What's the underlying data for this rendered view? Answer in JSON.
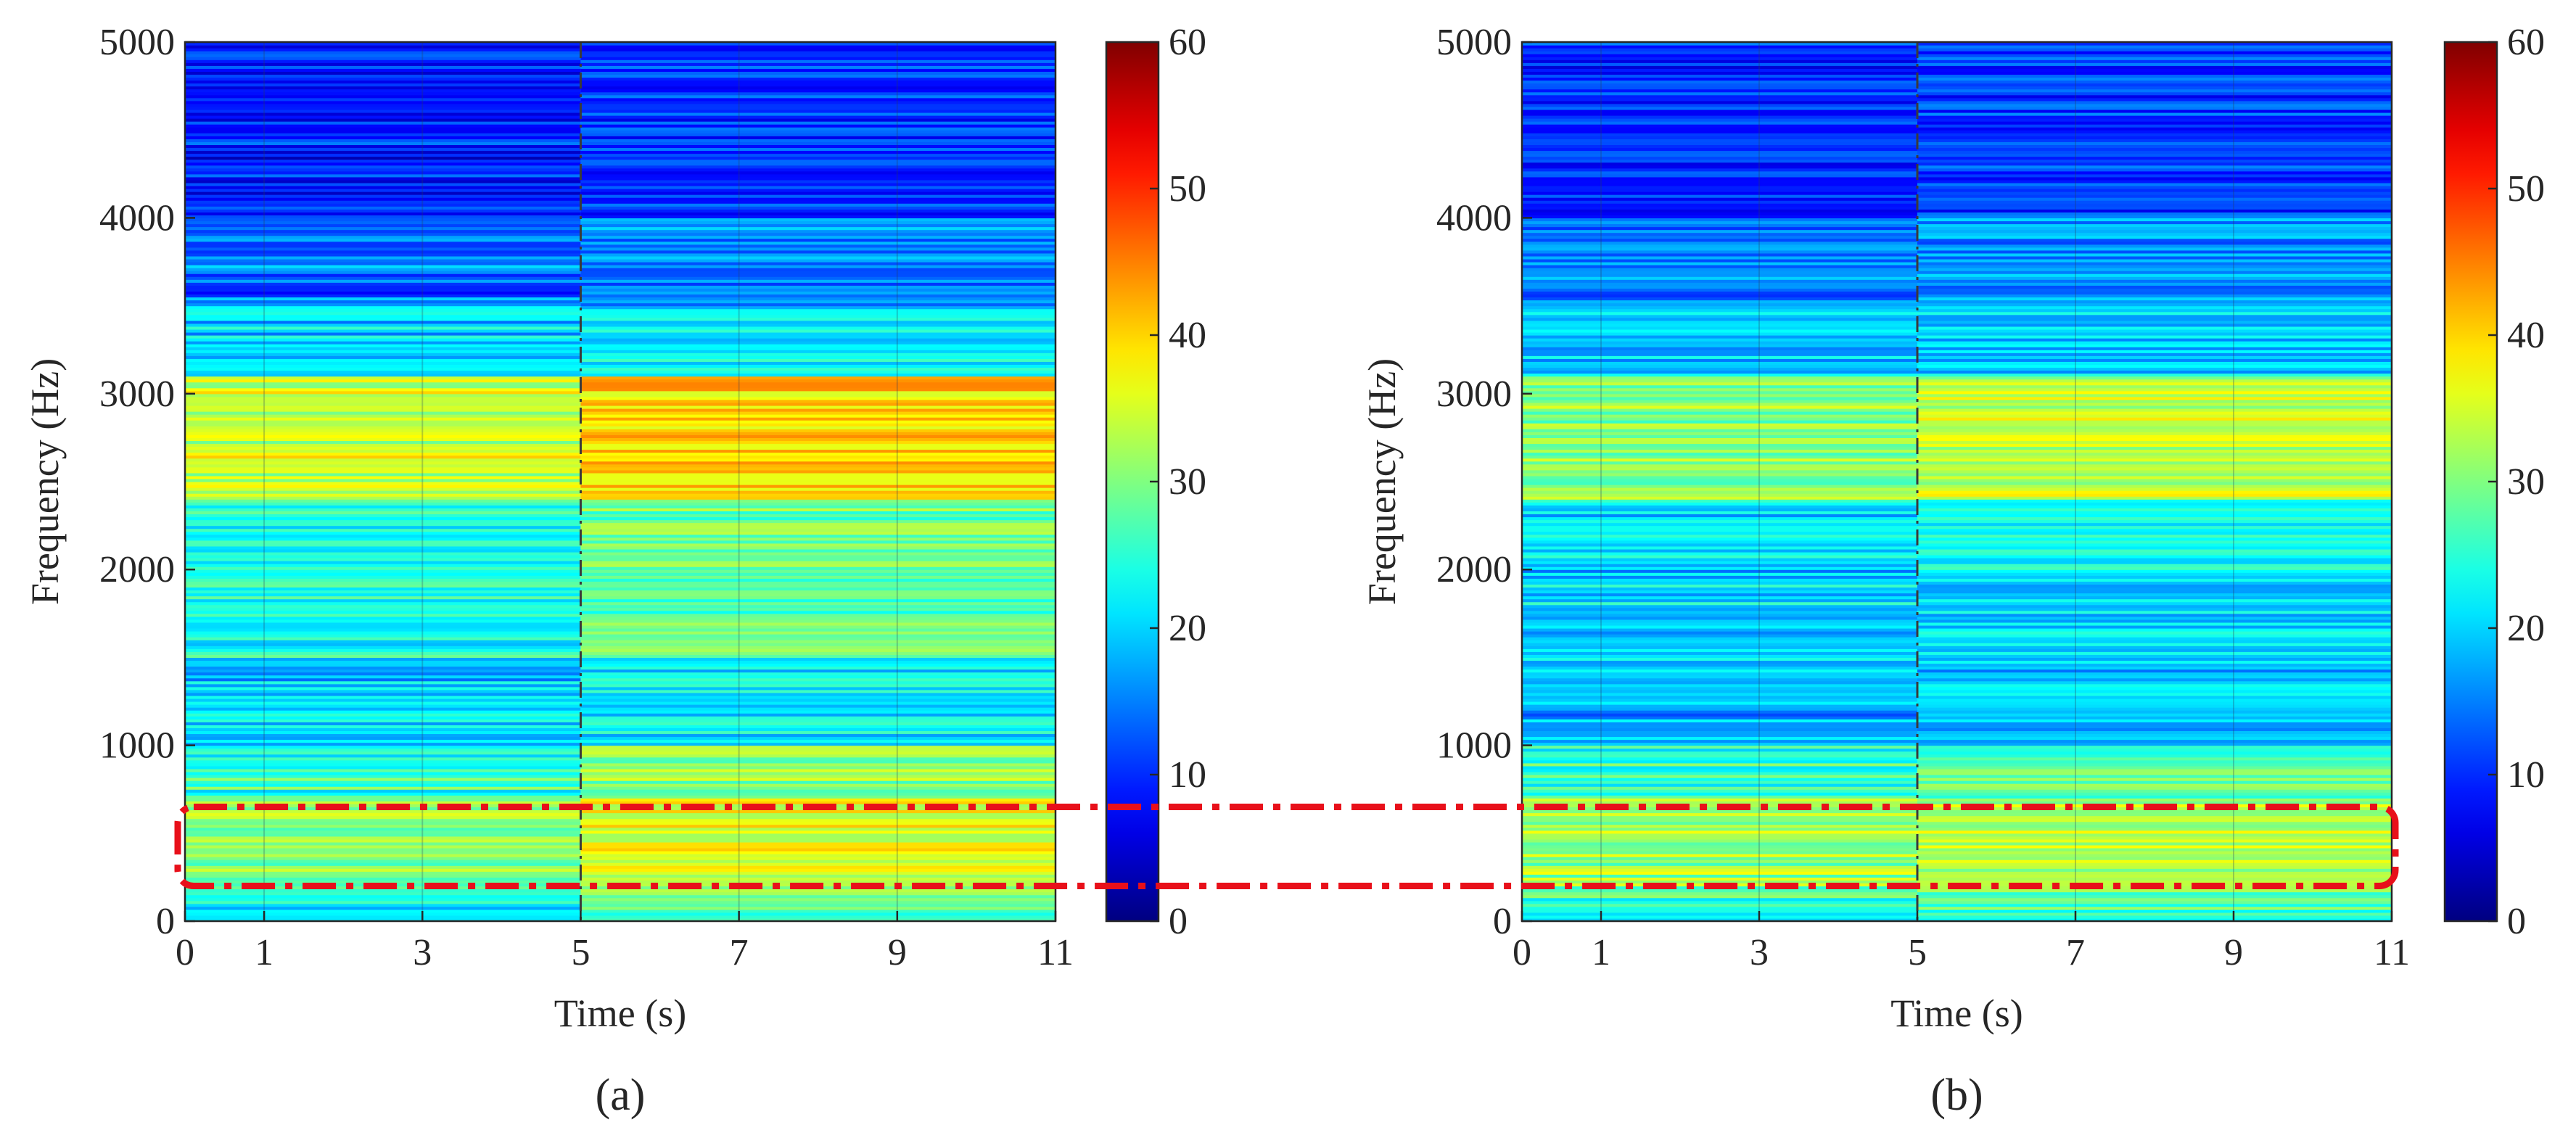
{
  "chart_data": [
    {
      "panel_label": "(a)",
      "type": "heatmap",
      "title": "",
      "xlabel": "Time (s)",
      "ylabel": "Frequency (Hz)",
      "xlim": [
        0,
        11
      ],
      "ylim": [
        0,
        5000
      ],
      "xticks": [
        0,
        1,
        3,
        5,
        7,
        9,
        11
      ],
      "yticks": [
        0,
        1000,
        2000,
        3000,
        4000,
        5000
      ],
      "marker_time_s": 5,
      "colorbar": {
        "min": 0,
        "max": 60,
        "ticks": [
          0,
          10,
          20,
          30,
          40,
          50,
          60
        ],
        "colormap": "jet"
      },
      "bands_hz": [
        {
          "from": 0,
          "to": 100,
          "level": 22
        },
        {
          "from": 100,
          "to": 200,
          "level": 26
        },
        {
          "from": 200,
          "to": 700,
          "level": 31
        },
        {
          "from": 700,
          "to": 1000,
          "level": 26
        },
        {
          "from": 1000,
          "to": 1500,
          "level": 20
        },
        {
          "from": 1500,
          "to": 2000,
          "level": 23
        },
        {
          "from": 2000,
          "to": 2400,
          "level": 24
        },
        {
          "from": 2400,
          "to": 3100,
          "level": 35
        },
        {
          "from": 3100,
          "to": 3500,
          "level": 20
        },
        {
          "from": 3500,
          "to": 4000,
          "level": 14
        },
        {
          "from": 4000,
          "to": 5000,
          "level": 9
        }
      ],
      "after_marker_gain": 5
    },
    {
      "panel_label": "(b)",
      "type": "heatmap",
      "title": "",
      "xlabel": "Time (s)",
      "ylabel": "Frequency (Hz)",
      "xlim": [
        0,
        11
      ],
      "ylim": [
        0,
        5000
      ],
      "xticks": [
        0,
        1,
        3,
        5,
        7,
        9,
        11
      ],
      "yticks": [
        0,
        1000,
        2000,
        3000,
        4000,
        5000
      ],
      "marker_time_s": 5,
      "colorbar": {
        "min": 0,
        "max": 60,
        "ticks": [
          0,
          10,
          20,
          30,
          40,
          50,
          60
        ],
        "colormap": "jet"
      },
      "bands_hz": [
        {
          "from": 0,
          "to": 100,
          "level": 24
        },
        {
          "from": 100,
          "to": 200,
          "level": 26
        },
        {
          "from": 200,
          "to": 700,
          "level": 31
        },
        {
          "from": 700,
          "to": 1000,
          "level": 25
        },
        {
          "from": 1000,
          "to": 1500,
          "level": 18
        },
        {
          "from": 1500,
          "to": 2000,
          "level": 20
        },
        {
          "from": 2000,
          "to": 2400,
          "level": 21
        },
        {
          "from": 2400,
          "to": 3100,
          "level": 31
        },
        {
          "from": 3100,
          "to": 3500,
          "level": 19
        },
        {
          "from": 3500,
          "to": 4000,
          "level": 15
        },
        {
          "from": 4000,
          "to": 5000,
          "level": 10
        }
      ],
      "after_marker_gain": 3
    }
  ],
  "highlight_region_hz": [
    200,
    650
  ],
  "colors": {
    "highlight": "#e8101a",
    "marker_line": "#3a3a3a"
  }
}
